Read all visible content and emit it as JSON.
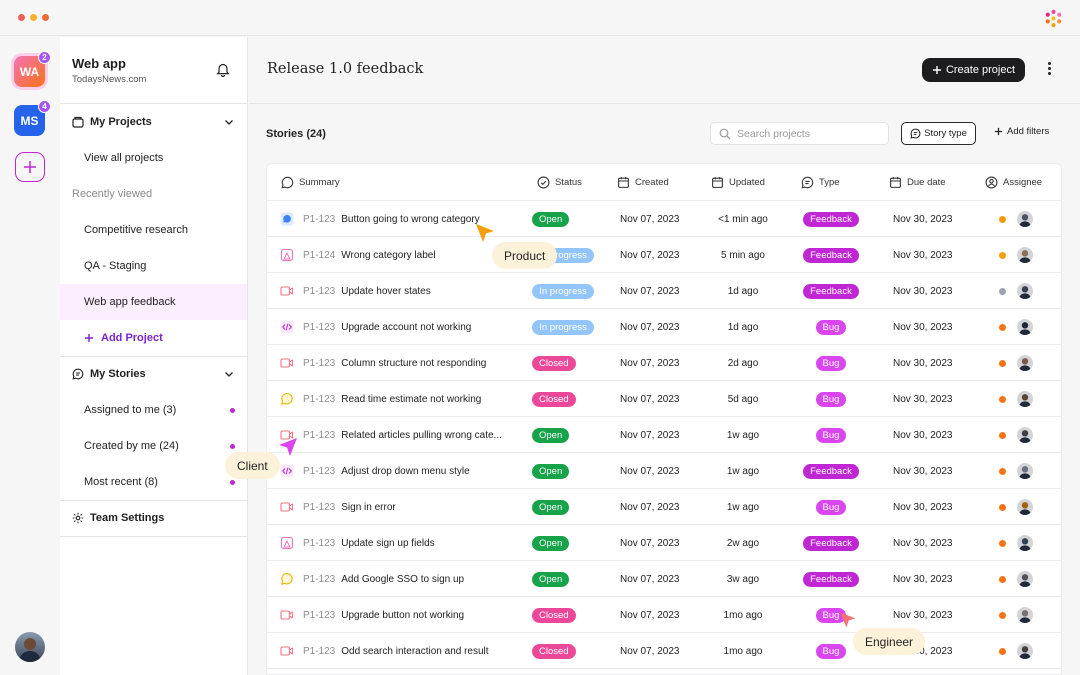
{
  "colors": {
    "accent": "#c026d3",
    "dark_button": "#1d1d1f",
    "open": "#16a34a",
    "in_progress": "#93c5fd",
    "closed": "#ec4899",
    "feedback": "#c026d3",
    "bug": "#d946ef"
  },
  "workspaces": [
    {
      "initials": "WA",
      "badge": "2",
      "color": "#ec4899"
    },
    {
      "initials": "MS",
      "badge": "4",
      "color": "#2563eb"
    }
  ],
  "sidebar": {
    "title": "Web app",
    "subtitle": "TodaysNews.com",
    "my_projects": "My Projects",
    "view_all": "View all projects",
    "recently_viewed": "Recently viewed",
    "recent": [
      "Competitive research",
      "QA - Staging",
      "Web app feedback"
    ],
    "add_project": "Add Project",
    "my_stories": "My Stories",
    "story_filters": [
      "Assigned to me (3)",
      "Created by me (24)",
      "Most recent (8)"
    ],
    "team_settings": "Team Settings"
  },
  "header": {
    "title": "Release 1.0 feedback",
    "create_button": "Create project"
  },
  "toolbar": {
    "stories_count": "Stories (24)",
    "search_placeholder": "Search projects",
    "story_type": "Story type",
    "add_filters": "Add filters"
  },
  "columns": {
    "summary": "Summary",
    "status": "Status",
    "created": "Created",
    "updated": "Updated",
    "type": "Type",
    "due": "Due date",
    "assignee": "Assignee"
  },
  "rows": [
    {
      "id": "P1-123",
      "summary": "Button going to wrong category",
      "status": "Open",
      "created": "Nov 07, 2023",
      "updated": "<1 min ago",
      "type": "Feedback",
      "due": "Nov 30, 2023",
      "icon": "chat",
      "priority": "#f59e0b"
    },
    {
      "id": "P1-124",
      "summary": "Wrong category label",
      "status": "In progress",
      "created": "Nov 07, 2023",
      "updated": "5 min ago",
      "type": "Feedback",
      "due": "Nov 30, 2023",
      "icon": "bookmark",
      "priority": "#f59e0b"
    },
    {
      "id": "P1-123",
      "summary": "Update hover states",
      "status": "In progress",
      "created": "Nov 07, 2023",
      "updated": "1d ago",
      "type": "Feedback",
      "due": "Nov 30, 2023",
      "icon": "video",
      "priority": "#9ca3af"
    },
    {
      "id": "P1-123",
      "summary": "Upgrade account not working",
      "status": "In progress",
      "created": "Nov 07, 2023",
      "updated": "1d ago",
      "type": "Bug",
      "due": "Nov 30, 2023",
      "icon": "code",
      "priority": "#f97316"
    },
    {
      "id": "P1-123",
      "summary": "Column structure not responding",
      "status": "Closed",
      "created": "Nov 07, 2023",
      "updated": "2d ago",
      "type": "Bug",
      "due": "Nov 30, 2023",
      "icon": "video",
      "priority": "#f97316"
    },
    {
      "id": "P1-123",
      "summary": "Read time estimate not working",
      "status": "Closed",
      "created": "Nov 07, 2023",
      "updated": "5d ago",
      "type": "Bug",
      "due": "Nov 30, 2023",
      "icon": "chat-yellow",
      "priority": "#f97316"
    },
    {
      "id": "P1-123",
      "summary": "Related articles pulling wrong cate...",
      "status": "Open",
      "created": "Nov 07, 2023",
      "updated": "1w ago",
      "type": "Bug",
      "due": "Nov 30, 2023",
      "icon": "video",
      "priority": "#f97316"
    },
    {
      "id": "P1-123",
      "summary": "Adjust drop down menu style",
      "status": "Open",
      "created": "Nov 07, 2023",
      "updated": "1w ago",
      "type": "Feedback",
      "due": "Nov 30, 2023",
      "icon": "code",
      "priority": "#f97316"
    },
    {
      "id": "P1-123",
      "summary": "Sign in error",
      "status": "Open",
      "created": "Nov 07, 2023",
      "updated": "1w ago",
      "type": "Bug",
      "due": "Nov 30, 2023",
      "icon": "video",
      "priority": "#f97316"
    },
    {
      "id": "P1-123",
      "summary": "Update sign up fields",
      "status": "Open",
      "created": "Nov 07, 2023",
      "updated": "2w ago",
      "type": "Feedback",
      "due": "Nov 30, 2023",
      "icon": "bookmark",
      "priority": "#f97316"
    },
    {
      "id": "P1-123",
      "summary": "Add Google SSO to sign up",
      "status": "Open",
      "created": "Nov 07, 2023",
      "updated": "3w ago",
      "type": "Feedback",
      "due": "Nov 30, 2023",
      "icon": "chat-yellow",
      "priority": "#f97316"
    },
    {
      "id": "P1-123",
      "summary": "Upgrade button not working",
      "status": "Closed",
      "created": "Nov 07, 2023",
      "updated": "1mo ago",
      "type": "Bug",
      "due": "Nov 30, 2023",
      "icon": "video",
      "priority": "#f97316"
    },
    {
      "id": "P1-123",
      "summary": "Odd search interaction and result",
      "status": "Closed",
      "created": "Nov 07, 2023",
      "updated": "1mo ago",
      "type": "Bug",
      "due": "Nov 30, 2023",
      "icon": "video",
      "priority": "#f97316"
    }
  ],
  "callouts": {
    "product": "Product",
    "client": "Client",
    "engineer": "Engineer"
  }
}
